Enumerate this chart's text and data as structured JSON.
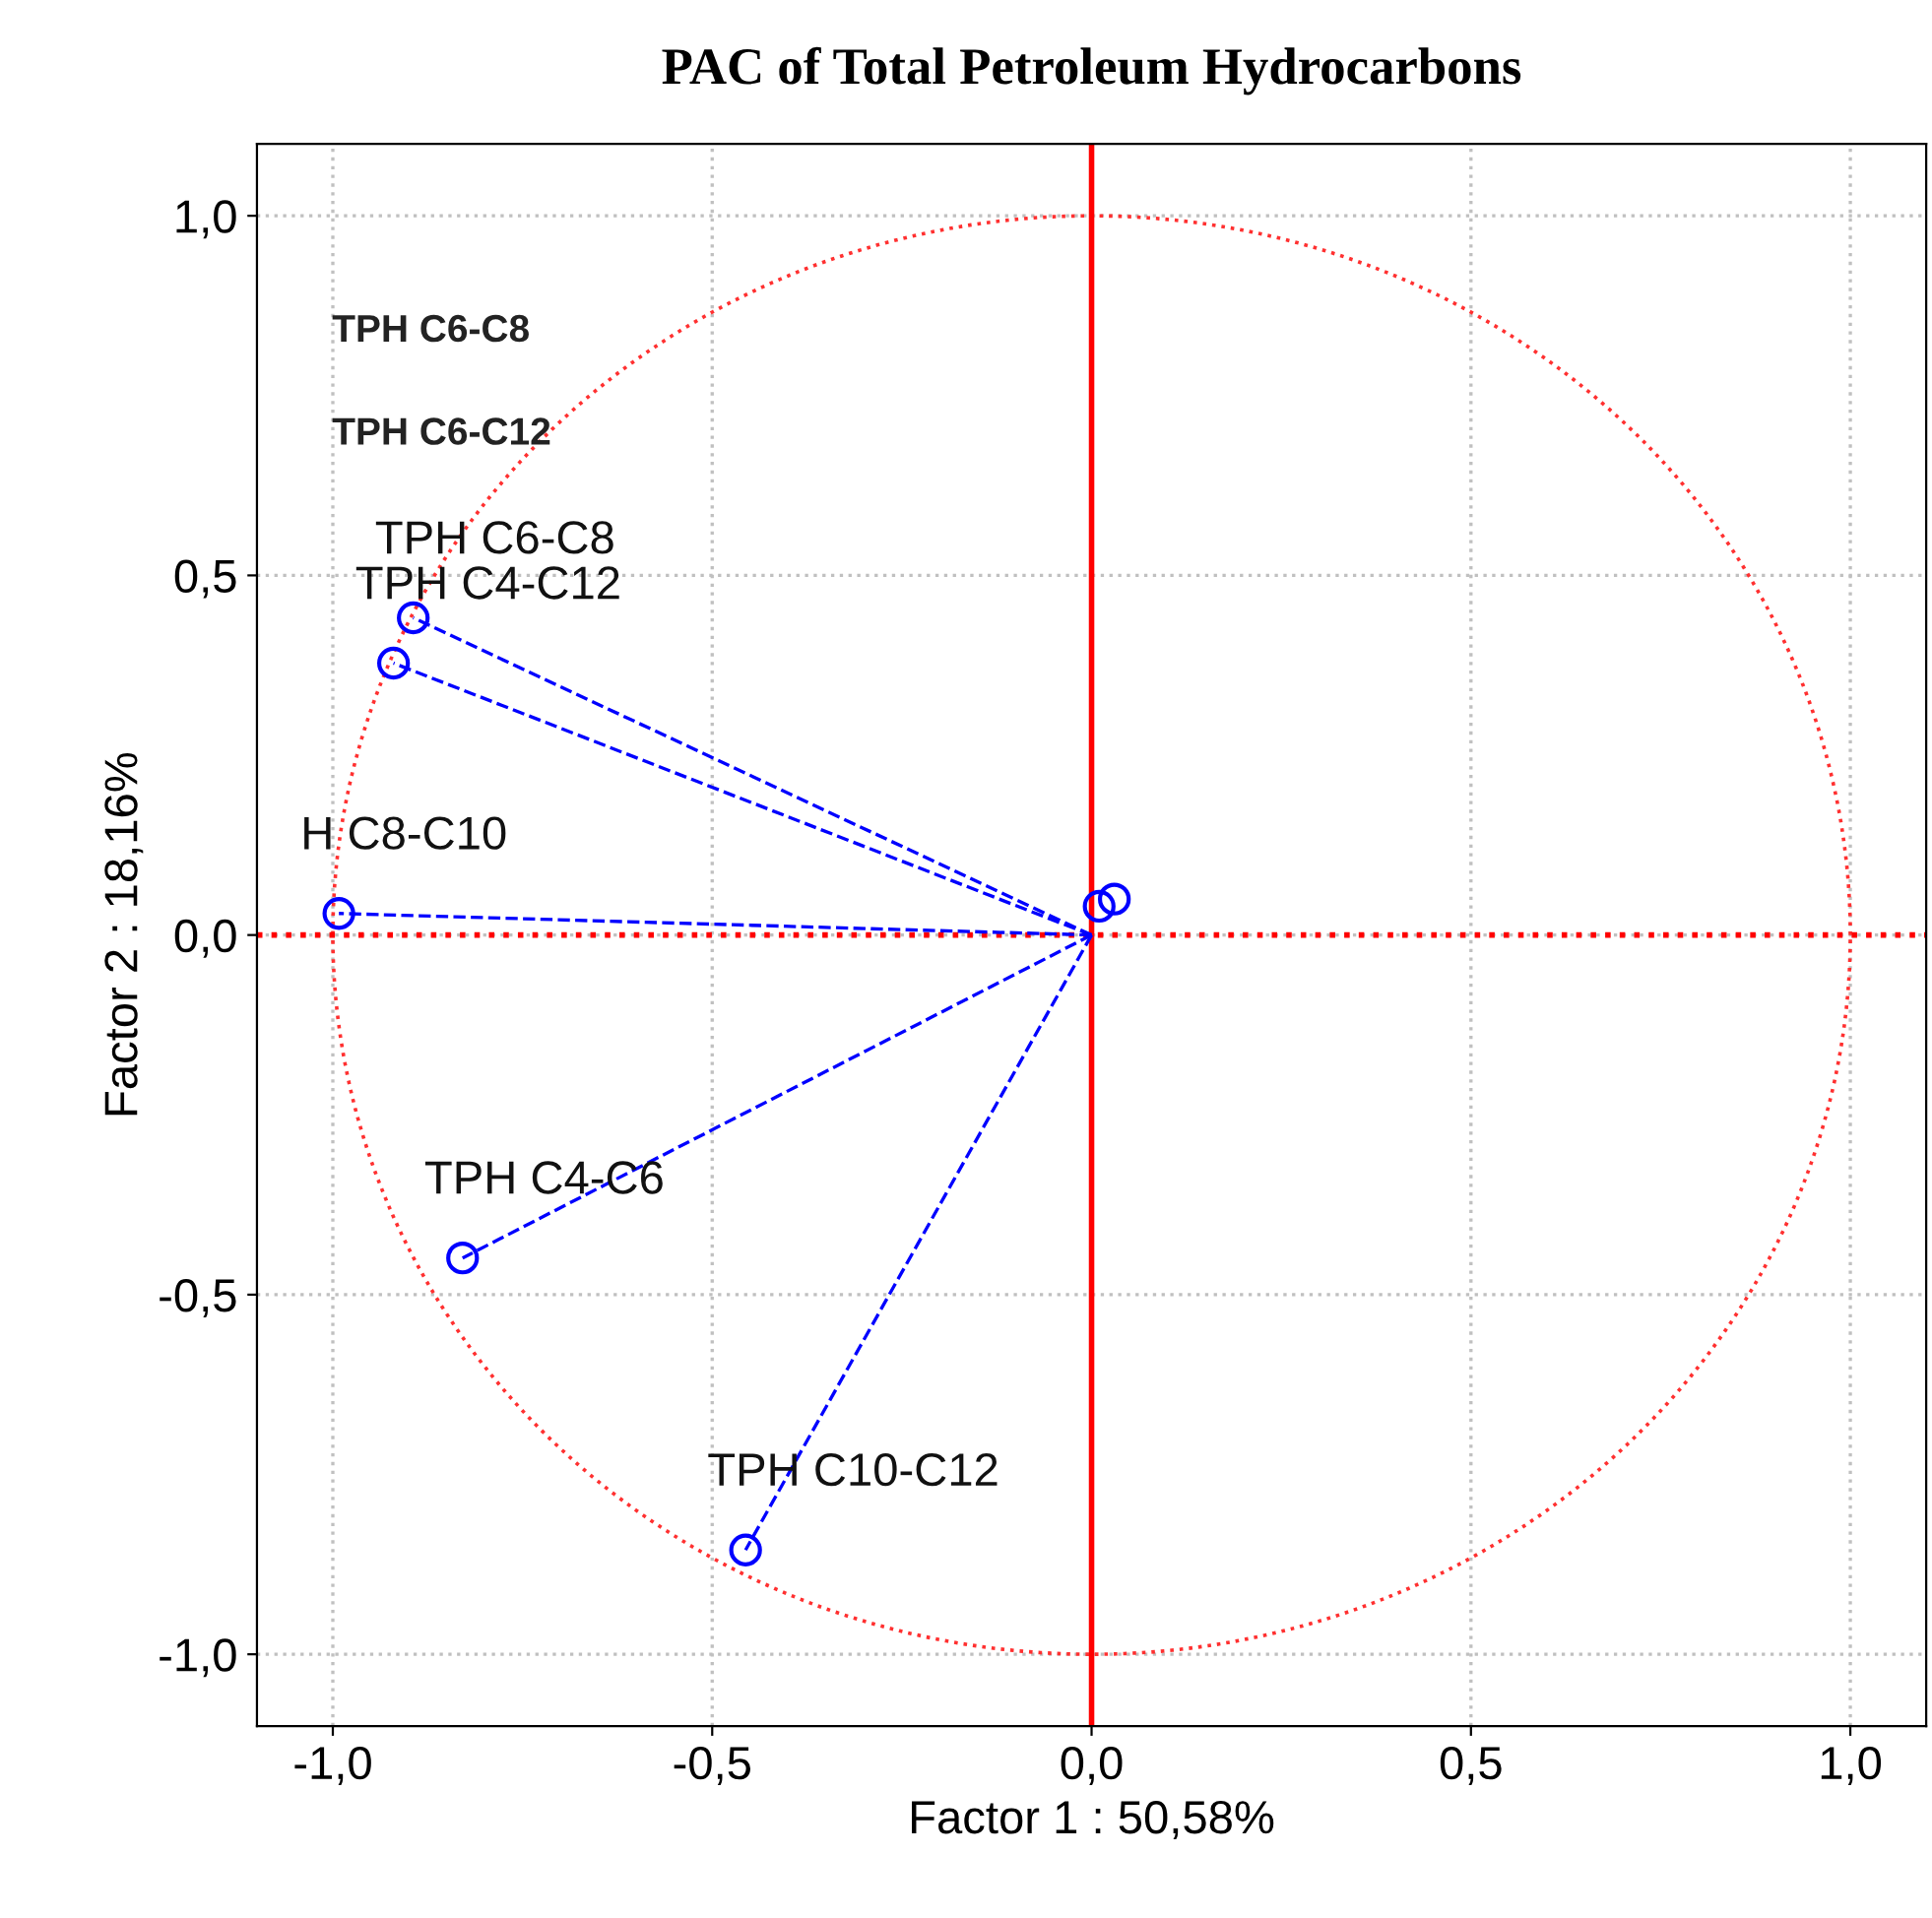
{
  "chart_data": {
    "type": "scatter",
    "title": "PAC of Total Petroleum Hydrocarbons",
    "xlabel": "Factor 1 : 50,58%",
    "ylabel": "Factor 2 : 18,16%",
    "xlim": [
      -1.1,
      1.1
    ],
    "ylim": [
      -1.1,
      1.1
    ],
    "xticks": [
      {
        "value": -1,
        "label": "-1,0"
      },
      {
        "value": -0.5,
        "label": "-0,5"
      },
      {
        "value": 0,
        "label": "0,0"
      },
      {
        "value": 0.5,
        "label": "0,5"
      },
      {
        "value": 1,
        "label": "1,0"
      }
    ],
    "yticks": [
      {
        "value": -1,
        "label": "-1,0"
      },
      {
        "value": -0.5,
        "label": "-0,5"
      },
      {
        "value": 0,
        "label": "0,0"
      },
      {
        "value": 0.5,
        "label": "0,5"
      },
      {
        "value": 1,
        "label": "1,0"
      }
    ],
    "grid": true,
    "legend": false,
    "series": [
      {
        "type": "line",
        "color": "#0000ff",
        "line_style": "dashed",
        "marker": "none",
        "x": [
          0,
          -0.894
        ],
        "values": [
          0,
          0.441
        ]
      },
      {
        "type": "line",
        "color": "#0000ff",
        "line_style": "dashed",
        "marker": "none",
        "x": [
          0,
          -0.92
        ],
        "values": [
          0,
          0.378
        ]
      },
      {
        "type": "line",
        "color": "#0000ff",
        "line_style": "dashed",
        "marker": "none",
        "x": [
          0,
          -0.992
        ],
        "values": [
          0,
          0.03
        ]
      },
      {
        "type": "line",
        "color": "#0000ff",
        "line_style": "dashed",
        "marker": "none",
        "x": [
          0,
          -0.829
        ],
        "values": [
          0,
          -0.449
        ]
      },
      {
        "type": "line",
        "color": "#0000ff",
        "line_style": "dashed",
        "marker": "none",
        "x": [
          0,
          -0.456
        ],
        "values": [
          0,
          -0.855
        ]
      },
      {
        "color": "#0000ff",
        "marker": "circle",
        "x": [
          -0.894,
          -0.92,
          -0.992,
          -0.829,
          -0.456,
          0.01,
          0.03
        ],
        "values": [
          0.441,
          0.378,
          0.03,
          -0.449,
          -0.855,
          0.04,
          0.05
        ]
      }
    ],
    "ref_lines": [
      {
        "axis": "x",
        "value": 0,
        "color": "#ff0000",
        "line_style": "solid"
      },
      {
        "axis": "y",
        "value": 0,
        "color": "#ff0000",
        "line_style": "dotted"
      }
    ],
    "annotations": [
      {
        "text": "TPH C6-C8",
        "x": -0.894,
        "y": 0.441
      },
      {
        "text": "TPH C4-C12",
        "x": -0.92,
        "y": 0.378
      },
      {
        "text": "H C8-C10",
        "x": -0.992,
        "y": 0.03
      },
      {
        "text": "TPH C4-C6",
        "x": -0.829,
        "y": -0.449
      },
      {
        "text": "TPH C10-C12",
        "x": -0.456,
        "y": -0.855
      },
      "TPH C6-C8",
      "TPH C6-C12"
    ]
  }
}
